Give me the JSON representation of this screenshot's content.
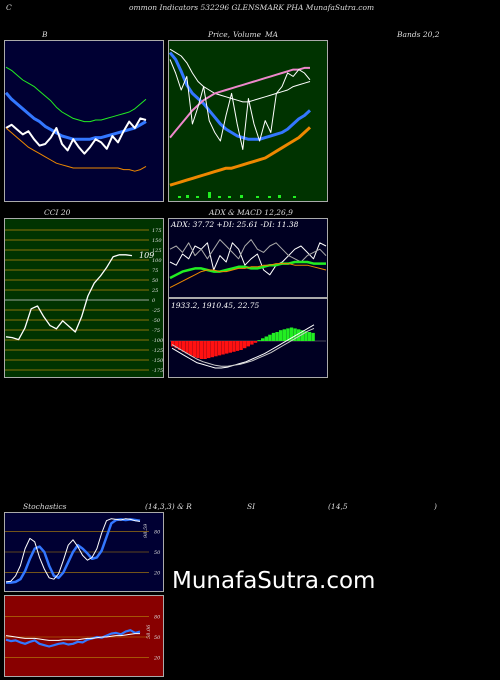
{
  "header": {
    "c": "C",
    "title": "ommon Indicators 532296 GLENSMARK PHA MunafaSutra.com"
  },
  "labels": {
    "b": "B",
    "price": "Price,",
    "volume": "Volume",
    "ma": "MA",
    "bands": "Bands 20,2",
    "cci": "CCI 20",
    "adx": "ADX",
    "macd": "& MACD 12,26,9",
    "stoch": "Stochastics",
    "stoch_param": "(14,3,3) & R",
    "si": "SI",
    "rsi_param": "(14,5",
    "rsi_close": ")"
  },
  "watermark": "MunafaSutra.com",
  "colors": {
    "bb_bg": "#000033",
    "ma_bg": "#003300",
    "cci_bg": "#003300",
    "adx_bg": "#000022",
    "stoch_bg": "#000033",
    "rsi_bg": "#880000",
    "green": "#22ee22",
    "blue": "#3377ff",
    "orange": "#ee8800",
    "white": "#ffffff",
    "red": "#ff1111",
    "pink": "#ee88cc"
  },
  "chart_data": [
    {
      "type": "line",
      "panel": "bollinger",
      "title": "B",
      "series": [
        {
          "color": "green",
          "values": [
            78,
            76,
            73,
            70,
            68,
            66,
            63,
            60,
            57,
            53,
            50,
            48,
            46,
            45,
            44,
            44,
            45,
            45,
            46,
            47,
            48,
            49,
            50,
            52,
            55,
            58
          ]
        },
        {
          "color": "blue",
          "values": [
            62,
            58,
            55,
            52,
            49,
            46,
            44,
            41,
            39,
            37,
            35,
            34,
            33,
            33,
            33,
            33,
            34,
            34,
            35,
            36,
            37,
            38,
            39,
            40,
            42,
            44
          ]
        },
        {
          "color": "white",
          "values": [
            40,
            42,
            39,
            36,
            38,
            33,
            29,
            30,
            34,
            40,
            30,
            26,
            33,
            28,
            24,
            28,
            33,
            31,
            27,
            35,
            31,
            38,
            44,
            40,
            46,
            45
          ]
        },
        {
          "color": "orange",
          "values": [
            40,
            37,
            34,
            31,
            28,
            26,
            24,
            22,
            20,
            18,
            17,
            16,
            15,
            15,
            15,
            15,
            15,
            15,
            15,
            15,
            15,
            14,
            14,
            13,
            14,
            16
          ]
        }
      ]
    },
    {
      "type": "line",
      "panel": "price_ma",
      "title": "Price, Volume MA",
      "series": [
        {
          "color": "blue",
          "values": [
            82,
            78,
            71,
            63,
            58,
            55,
            52,
            48,
            44,
            40,
            37,
            35,
            33,
            32,
            31,
            31,
            31,
            32,
            33,
            34,
            35,
            37,
            40,
            43,
            45,
            48
          ]
        },
        {
          "color": "white",
          "values": [
            84,
            82,
            80,
            76,
            70,
            65,
            62,
            60,
            58,
            57,
            56,
            55,
            54,
            53,
            53,
            54,
            55,
            56,
            57,
            58,
            59,
            60,
            62,
            63,
            64,
            65
          ]
        },
        {
          "color": "pink",
          "values": [
            32,
            36,
            40,
            44,
            48,
            51,
            54,
            56,
            58,
            59,
            60,
            61,
            62,
            63,
            64,
            65,
            66,
            67,
            68,
            69,
            70,
            71,
            72,
            72,
            73,
            73
          ]
        },
        {
          "color": "white",
          "values": [
            78,
            70,
            60,
            68,
            40,
            50,
            62,
            42,
            35,
            30,
            45,
            58,
            40,
            25,
            55,
            40,
            30,
            42,
            35,
            58,
            62,
            70,
            68,
            72,
            70,
            66
          ]
        },
        {
          "color": "orange",
          "values": [
            4,
            5,
            6,
            7,
            8,
            9,
            10,
            11,
            12,
            13,
            14,
            14,
            15,
            16,
            17,
            18,
            19,
            20,
            22,
            24,
            26,
            28,
            30,
            32,
            35,
            38
          ]
        }
      ]
    },
    {
      "type": "line",
      "panel": "cci",
      "title": "CCI 20",
      "ticks": [
        "175",
        "150",
        "125",
        "100",
        "75",
        "50",
        "25",
        "0",
        "-25",
        "-50",
        "-75",
        "-100",
        "-125",
        "-150",
        "-175"
      ],
      "last_label": "109",
      "series": [
        {
          "color": "white",
          "values": [
            -92,
            -94,
            -99,
            -70,
            -22,
            -15,
            -42,
            -64,
            -72,
            -52,
            -66,
            -80,
            -42,
            10,
            42,
            60,
            82,
            108,
            113,
            113,
            111
          ]
        }
      ]
    },
    {
      "type": "line",
      "panel": "adx",
      "title": "ADX: 37.72 +DI: 25.61 -DI: 11.38",
      "series": [
        {
          "color": "white",
          "values": [
            20,
            18,
            25,
            22,
            30,
            28,
            32,
            15,
            24,
            20,
            32,
            28,
            18,
            22,
            25,
            15,
            12,
            18,
            20,
            24,
            28,
            30,
            26,
            22,
            32,
            30
          ]
        },
        {
          "color": "gray",
          "values": [
            28,
            30,
            26,
            32,
            24,
            28,
            22,
            28,
            34,
            30,
            26,
            22,
            30,
            34,
            28,
            26,
            30,
            32,
            28,
            24,
            22,
            20,
            24,
            26,
            28,
            24
          ]
        },
        {
          "color": "green",
          "values": [
            10,
            12,
            14,
            15,
            16,
            16,
            15,
            14,
            14,
            15,
            16,
            17,
            17,
            16,
            16,
            17,
            18,
            18,
            19,
            19,
            20,
            20,
            20,
            19,
            19,
            19
          ]
        },
        {
          "color": "orange",
          "values": [
            4,
            6,
            8,
            10,
            12,
            14,
            15,
            15,
            14,
            14,
            15,
            16,
            16,
            17,
            17,
            18,
            18,
            19,
            19,
            19,
            18,
            18,
            18,
            17,
            16,
            15
          ]
        }
      ]
    },
    {
      "type": "bar",
      "panel": "macd",
      "title": "1933.2, 1910.45, 22.75",
      "series": [
        {
          "name": "histogram",
          "values": [
            -6,
            -8,
            -10,
            -12,
            -14,
            -16,
            -18,
            -19,
            -20,
            -20,
            -19,
            -18,
            -17,
            -16,
            -15,
            -14,
            -13,
            -12,
            -11,
            -10,
            -8,
            -6,
            -4,
            -2,
            1,
            3,
            5,
            7,
            9,
            10,
            12,
            13,
            14,
            15,
            14,
            13,
            12,
            11,
            10,
            9
          ]
        },
        {
          "name": "macd",
          "values": [
            -8,
            -12,
            -16,
            -20,
            -24,
            -26,
            -28,
            -30,
            -30,
            -29,
            -27,
            -25,
            -23,
            -20,
            -17,
            -14,
            -10,
            -6,
            -2,
            2,
            6,
            10,
            14,
            18
          ]
        },
        {
          "name": "signal",
          "values": [
            -4,
            -8,
            -12,
            -16,
            -20,
            -23,
            -25,
            -27,
            -28,
            -28,
            -27,
            -26,
            -24,
            -22,
            -19,
            -16,
            -13,
            -9,
            -5,
            -1,
            3,
            7,
            11,
            14
          ]
        }
      ]
    },
    {
      "type": "line",
      "panel": "stochastics",
      "title": "Stochastics (14,3,3)",
      "ticks": [
        "80",
        "50",
        "20"
      ],
      "last_label": "98.59",
      "series": [
        {
          "color": "blue",
          "values": [
            5,
            5,
            6,
            10,
            22,
            40,
            55,
            58,
            50,
            30,
            15,
            12,
            20,
            35,
            50,
            60,
            55,
            48,
            40,
            42,
            52,
            72,
            92,
            97,
            98,
            97,
            98,
            97,
            96
          ]
        },
        {
          "color": "white",
          "values": [
            6,
            7,
            15,
            30,
            55,
            70,
            65,
            42,
            25,
            12,
            10,
            18,
            38,
            60,
            68,
            58,
            45,
            38,
            42,
            55,
            78,
            96,
            99,
            98,
            97,
            99,
            98,
            96,
            95
          ]
        }
      ]
    },
    {
      "type": "line",
      "panel": "rsi",
      "title": "RSI (14,5)",
      "ticks": [
        "80",
        "50",
        "20"
      ],
      "last_label": "58.06",
      "series": [
        {
          "color": "blue",
          "values": [
            46,
            44,
            45,
            42,
            40,
            43,
            45,
            40,
            38,
            36,
            38,
            40,
            41,
            39,
            40,
            43,
            42,
            46,
            48,
            50,
            49,
            52,
            55,
            56,
            54,
            58,
            60,
            56,
            58
          ]
        },
        {
          "color": "white",
          "values": [
            52,
            51,
            50,
            49,
            48,
            48,
            48,
            47,
            46,
            45,
            45,
            45,
            46,
            46,
            46,
            46,
            47,
            48,
            48,
            49,
            50,
            50,
            51,
            52,
            52,
            53,
            54,
            55,
            55
          ]
        }
      ]
    }
  ]
}
